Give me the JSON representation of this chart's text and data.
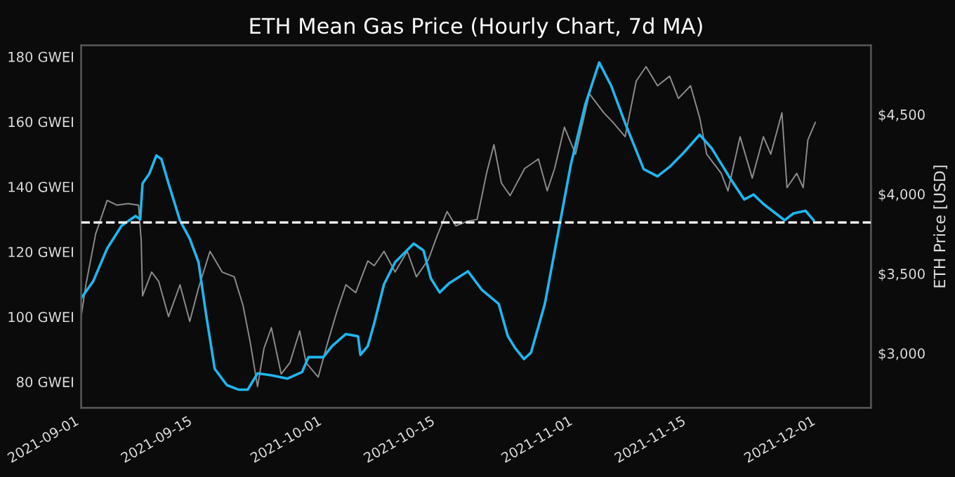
{
  "chart_data": {
    "type": "line",
    "title": "ETH Mean Gas Price (Hourly Chart, 7d MA)",
    "y2label": "ETH Price [USD]",
    "xlim": [
      "2021-09-01",
      "2021-12-07T14:00"
    ],
    "xticks": [
      "2021-09-01",
      "2021-09-15",
      "2021-10-01",
      "2021-10-15",
      "2021-11-01",
      "2021-11-15",
      "2021-12-01"
    ],
    "ylim": [
      72,
      183.5
    ],
    "yticks": [
      {
        "value": 80,
        "label": "80 GWEI"
      },
      {
        "value": 100,
        "label": "100 GWEI"
      },
      {
        "value": 120,
        "label": "120 GWEI"
      },
      {
        "value": 140,
        "label": "140 GWEI"
      },
      {
        "value": 160,
        "label": "160 GWEI"
      },
      {
        "value": 180,
        "label": "180 GWEI"
      }
    ],
    "y2lim": [
      2657,
      4934
    ],
    "y2ticks": [
      {
        "value": 3000,
        "label": "$3,000"
      },
      {
        "value": 3500,
        "label": "$3,500"
      },
      {
        "value": 4000,
        "label": "$4,000"
      },
      {
        "value": 4500,
        "label": "$4,500"
      }
    ],
    "grid": false,
    "legend": false,
    "ref_lines": [
      {
        "axis": "y",
        "value": 129,
        "color": "#ffffff",
        "line_style": "dashed"
      }
    ],
    "series": [
      {
        "color": "#8c8c8c",
        "axis": "y2",
        "x": [
          "2021-09-01T00:00",
          "2021-09-01T14:00",
          "2021-09-02T19:00",
          "2021-09-04T05:00",
          "2021-09-05T10:00",
          "2021-09-06T19:00",
          "2021-09-08T02:00",
          "2021-09-08T10:00",
          "2021-09-08T14:00",
          "2021-09-09T17:00",
          "2021-09-10T14:00",
          "2021-09-11T19:00",
          "2021-09-13T05:00",
          "2021-09-14T10:00",
          "2021-09-15T12:00",
          "2021-09-16T22:00",
          "2021-09-18T10:00",
          "2021-09-19T22:00",
          "2021-09-21T00:00",
          "2021-09-21T22:00",
          "2021-09-22T19:00",
          "2021-09-23T14:00",
          "2021-09-24T12:00",
          "2021-09-25T17:00",
          "2021-09-26T19:00",
          "2021-09-28T00:00",
          "2021-09-28T19:00",
          "2021-09-30T07:00",
          "2021-10-01T10:00",
          "2021-10-02T14:00",
          "2021-10-03T17:00",
          "2021-10-04T22:00",
          "2021-10-06T10:00",
          "2021-10-07T05:00",
          "2021-10-08T10:00",
          "2021-10-09T19:00",
          "2021-10-11T07:00",
          "2021-10-12T10:00",
          "2021-10-13T22:00",
          "2021-10-15T00:00",
          "2021-10-16T05:00",
          "2021-10-17T07:00",
          "2021-10-18T19:00",
          "2021-10-19T22:00",
          "2021-10-21T02:00",
          "2021-10-22T00:00",
          "2021-10-22T22:00",
          "2021-10-24T00:00",
          "2021-10-25T19:00",
          "2021-10-27T12:00",
          "2021-10-28T14:00",
          "2021-10-29T12:00",
          "2021-10-30T17:00",
          "2021-11-01T02:00",
          "2021-11-02T19:00",
          "2021-11-04T14:00",
          "2021-11-05T17:00",
          "2021-11-07T05:00",
          "2021-11-08T14:00",
          "2021-11-09T19:00",
          "2021-11-11T05:00",
          "2021-11-12T17:00",
          "2021-11-13T19:00",
          "2021-11-15T07:00",
          "2021-11-16T10:00",
          "2021-11-17T07:00",
          "2021-11-19T02:00",
          "2021-11-19T22:00",
          "2021-11-21T10:00",
          "2021-11-22T22:00",
          "2021-11-24T07:00",
          "2021-11-25T05:00",
          "2021-11-26T14:00",
          "2021-11-27T05:00",
          "2021-11-28T10:00",
          "2021-11-29T05:00",
          "2021-11-29T19:00",
          "2021-11-30T17:00"
        ],
        "values": [
          3230,
          3430,
          3750,
          3960,
          3930,
          3940,
          3930,
          3710,
          3360,
          3510,
          3450,
          3230,
          3430,
          3200,
          3410,
          3640,
          3510,
          3480,
          3300,
          3060,
          2790,
          3030,
          3160,
          2870,
          2940,
          3140,
          2940,
          2850,
          3060,
          3260,
          3430,
          3380,
          3580,
          3550,
          3640,
          3510,
          3640,
          3480,
          3590,
          3740,
          3890,
          3800,
          3830,
          3840,
          4130,
          4310,
          4070,
          3990,
          4160,
          4220,
          4020,
          4160,
          4420,
          4250,
          4630,
          4510,
          4450,
          4360,
          4710,
          4800,
          4680,
          4740,
          4600,
          4680,
          4480,
          4250,
          4130,
          4020,
          4360,
          4100,
          4360,
          4250,
          4510,
          4040,
          4130,
          4040,
          4340,
          4450
        ]
      },
      {
        "color": "#1fb6ee",
        "axis": "y",
        "x": [
          "2021-09-01T00:00",
          "2021-09-02T12:00",
          "2021-09-04T05:00",
          "2021-09-06T00:00",
          "2021-09-07T17:00",
          "2021-09-08T07:00",
          "2021-09-08T14:00",
          "2021-09-09T10:00",
          "2021-09-10T07:00",
          "2021-09-10T22:00",
          "2021-09-11T19:00",
          "2021-09-13T05:00",
          "2021-09-14T10:00",
          "2021-09-15T12:00",
          "2021-09-16T10:00",
          "2021-09-17T12:00",
          "2021-09-19T00:00",
          "2021-09-20T10:00",
          "2021-09-21T14:00",
          "2021-09-22T19:00",
          "2021-09-24T12:00",
          "2021-09-26T12:00",
          "2021-09-28T07:00",
          "2021-09-29T02:00",
          "2021-09-30T22:00",
          "2021-10-02T00:00",
          "2021-10-03T17:00",
          "2021-10-05T05:00",
          "2021-10-05T12:00",
          "2021-10-06T10:00",
          "2021-10-07T05:00",
          "2021-10-08T10:00",
          "2021-10-09T19:00",
          "2021-10-12T02:00",
          "2021-10-13T07:00",
          "2021-10-14T05:00",
          "2021-10-15T07:00",
          "2021-10-16T12:00",
          "2021-10-18T19:00",
          "2021-10-20T12:00",
          "2021-10-22T14:00",
          "2021-10-23T17:00",
          "2021-10-24T14:00",
          "2021-10-25T17:00",
          "2021-10-26T14:00",
          "2021-10-28T07:00",
          "2021-10-29T19:00",
          "2021-10-31T12:00",
          "2021-11-02T07:00",
          "2021-11-04T00:00",
          "2021-11-05T12:00",
          "2021-11-07T05:00",
          "2021-11-09T12:00",
          "2021-11-11T05:00",
          "2021-11-12T17:00",
          "2021-11-14T10:00",
          "2021-11-16T10:00",
          "2021-11-17T22:00",
          "2021-11-20T05:00",
          "2021-11-21T22:00",
          "2021-11-23T02:00",
          "2021-11-24T07:00",
          "2021-11-26T22:00",
          "2021-11-28T00:00",
          "2021-11-29T12:00",
          "2021-11-30T12:00"
        ],
        "values": [
          105.7,
          111,
          121,
          128,
          131,
          130,
          141,
          144,
          149.6,
          148.5,
          141,
          129.6,
          124,
          116.8,
          101,
          84,
          79,
          77.6,
          77.6,
          82.6,
          82,
          81,
          83,
          87.6,
          87.6,
          91,
          94.7,
          94,
          88.3,
          91,
          98,
          110,
          116.8,
          122.5,
          120.4,
          111.8,
          107.5,
          110.4,
          114,
          108.3,
          104,
          94.1,
          90.5,
          87,
          89,
          104,
          124,
          146.8,
          165.3,
          178.2,
          171,
          159.6,
          145.4,
          143.2,
          146.1,
          150.4,
          156,
          151.8,
          142.5,
          136.1,
          137.6,
          134.7,
          129.7,
          131.8,
          132.6,
          129.7
        ]
      }
    ]
  }
}
